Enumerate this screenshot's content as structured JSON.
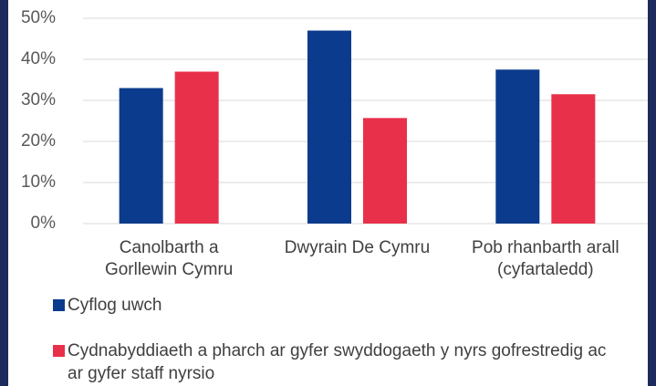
{
  "chart_data": {
    "type": "bar",
    "categories": [
      "Canolbarth a Gorllewin Cymru",
      "Dwyrain De Cymru",
      "Pob rhanbarth arall (cyfartaledd)"
    ],
    "series": [
      {
        "name": "Cyflog uwch",
        "color": "#0b3b8c",
        "values": [
          33,
          47,
          37.5
        ]
      },
      {
        "name": "Cydnabyddiaeth a pharch ar gyfer swyddogaeth y nyrs gofrestredig ac ar gyfer staff nyrsio",
        "color": "#e8304a",
        "values": [
          37,
          25.7,
          31.5
        ]
      }
    ],
    "ylim": [
      0,
      50
    ],
    "yticks": [
      {
        "value": 0,
        "label": "0%"
      },
      {
        "value": 10,
        "label": "10%"
      },
      {
        "value": 20,
        "label": "20%"
      },
      {
        "value": 30,
        "label": "30%"
      },
      {
        "value": 40,
        "label": "40%"
      },
      {
        "value": 50,
        "label": "50%"
      }
    ],
    "grid": true,
    "legend": "bottom"
  }
}
